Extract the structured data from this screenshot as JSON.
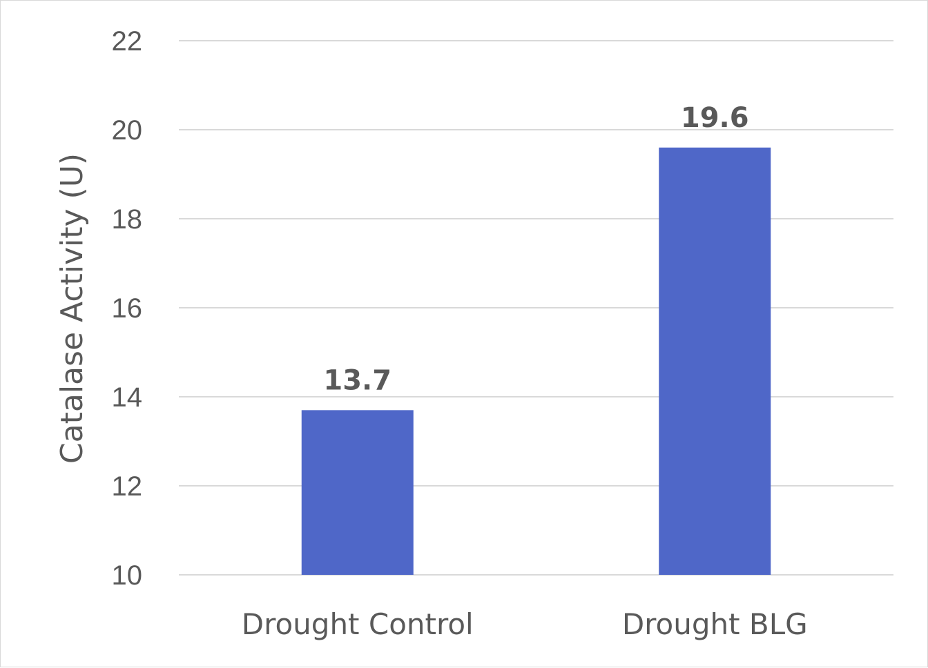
{
  "chart_data": {
    "type": "bar",
    "categories": [
      "Drought Control",
      "Drought BLG"
    ],
    "values": [
      13.7,
      19.6
    ],
    "data_labels": [
      "13.7",
      "19.6"
    ],
    "ylabel": "Catalase Activity (U)",
    "ylim": [
      10,
      22
    ],
    "yticks": [
      10,
      12,
      14,
      16,
      18,
      20,
      22
    ],
    "grid": true,
    "legend": "none",
    "bar_color": "#4f67c8",
    "grid_color": "#d9d9d9"
  }
}
